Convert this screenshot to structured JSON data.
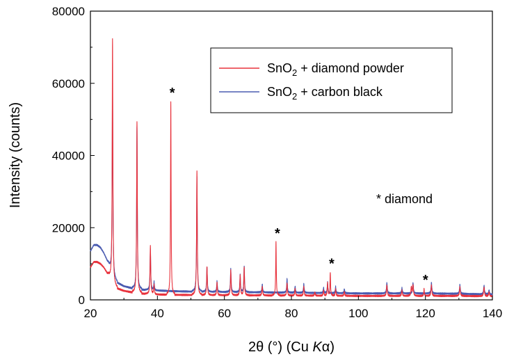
{
  "chart_data": {
    "type": "line",
    "xlabel_parts": [
      "2θ (°) (Cu ",
      "K",
      "α)"
    ],
    "ylabel": "Intensity (counts)",
    "xlim": [
      20,
      140
    ],
    "ylim": [
      0,
      80000
    ],
    "x_ticks": [
      "20",
      "40",
      "60",
      "80",
      "100",
      "120",
      "140"
    ],
    "y_ticks": [
      "0",
      "20000",
      "40000",
      "60000",
      "80000"
    ],
    "grid": false,
    "legend_placement": "top-right",
    "annotation": "* diamond",
    "star_peaks": [
      44.0,
      75.4,
      91.6,
      119.6
    ],
    "star_symbol": "*",
    "series": [
      {
        "name_parts": [
          "SnO",
          "2",
          " + diamond powder"
        ],
        "color": "#e8323c",
        "background": [
          [
            20,
            9000
          ],
          [
            21,
            10500
          ],
          [
            22,
            10500
          ],
          [
            23,
            10000
          ],
          [
            24,
            9000
          ],
          [
            25,
            7500
          ],
          [
            26,
            5800
          ],
          [
            27,
            4000
          ],
          [
            28,
            3200
          ],
          [
            30,
            2500
          ],
          [
            33,
            2000
          ],
          [
            36,
            1700
          ],
          [
            40,
            1500
          ],
          [
            45,
            1400
          ],
          [
            50,
            1350
          ],
          [
            60,
            1300
          ],
          [
            70,
            1250
          ],
          [
            80,
            1200
          ],
          [
            90,
            1150
          ],
          [
            100,
            1100
          ],
          [
            110,
            1100
          ],
          [
            120,
            1100
          ],
          [
            130,
            1100
          ],
          [
            140,
            1000
          ]
        ],
        "peaks": [
          [
            26.6,
            67500,
            0.12
          ],
          [
            33.9,
            47500,
            0.12
          ],
          [
            37.9,
            13500,
            0.12
          ],
          [
            39.0,
            2500,
            0.12
          ],
          [
            44.0,
            53500,
            0.1
          ],
          [
            51.8,
            34500,
            0.12
          ],
          [
            54.8,
            8000,
            0.12
          ],
          [
            57.8,
            3500,
            0.12
          ],
          [
            61.9,
            7000,
            0.12
          ],
          [
            64.7,
            5500,
            0.12
          ],
          [
            65.9,
            7800,
            0.12
          ],
          [
            71.3,
            2500,
            0.12
          ],
          [
            75.4,
            14800,
            0.1
          ],
          [
            78.7,
            3500,
            0.12
          ],
          [
            81.1,
            2000,
            0.12
          ],
          [
            83.7,
            2500,
            0.12
          ],
          [
            87.0,
            1000,
            0.12
          ],
          [
            89.6,
            1500,
            0.12
          ],
          [
            90.8,
            3500,
            0.12
          ],
          [
            91.6,
            6500,
            0.1
          ],
          [
            93.2,
            1800,
            0.12
          ],
          [
            95.8,
            1200,
            0.12
          ],
          [
            108.5,
            3000,
            0.14
          ],
          [
            113.0,
            1500,
            0.14
          ],
          [
            115.8,
            2500,
            0.14
          ],
          [
            116.3,
            3000,
            0.14
          ],
          [
            119.6,
            2000,
            0.1
          ],
          [
            121.8,
            3000,
            0.14
          ],
          [
            130.3,
            2500,
            0.14
          ],
          [
            137.5,
            2500,
            0.14
          ],
          [
            139.0,
            1200,
            0.14
          ]
        ]
      },
      {
        "name_parts": [
          "SnO",
          "2",
          " + carbon black"
        ],
        "color": "#4a5bb0",
        "background": [
          [
            20,
            13500
          ],
          [
            21,
            15200
          ],
          [
            22,
            15200
          ],
          [
            23,
            14500
          ],
          [
            24,
            13000
          ],
          [
            25,
            11000
          ],
          [
            26,
            8500
          ],
          [
            27,
            6000
          ],
          [
            28,
            4800
          ],
          [
            30,
            3800
          ],
          [
            33,
            3100
          ],
          [
            36,
            2800
          ],
          [
            40,
            2600
          ],
          [
            45,
            2400
          ],
          [
            50,
            2300
          ],
          [
            60,
            2200
          ],
          [
            70,
            2100
          ],
          [
            80,
            2000
          ],
          [
            90,
            1900
          ],
          [
            100,
            1800
          ],
          [
            110,
            1800
          ],
          [
            120,
            1800
          ],
          [
            130,
            1700
          ],
          [
            140,
            1500
          ]
        ],
        "peaks": [
          [
            26.6,
            54000,
            0.12
          ],
          [
            33.9,
            45000,
            0.12
          ],
          [
            37.9,
            11500,
            0.12
          ],
          [
            39.0,
            2300,
            0.12
          ],
          [
            51.8,
            32000,
            0.12
          ],
          [
            54.8,
            7000,
            0.12
          ],
          [
            57.8,
            3000,
            0.12
          ],
          [
            61.9,
            6500,
            0.12
          ],
          [
            64.7,
            4800,
            0.12
          ],
          [
            65.9,
            7200,
            0.12
          ],
          [
            71.3,
            2300,
            0.12
          ],
          [
            78.7,
            4000,
            0.12
          ],
          [
            81.1,
            1800,
            0.12
          ],
          [
            83.7,
            2500,
            0.12
          ],
          [
            89.6,
            1500,
            0.12
          ],
          [
            90.8,
            3000,
            0.12
          ],
          [
            93.2,
            1800,
            0.12
          ],
          [
            95.8,
            1200,
            0.12
          ],
          [
            108.5,
            3000,
            0.14
          ],
          [
            113.0,
            1500,
            0.14
          ],
          [
            116.3,
            3000,
            0.14
          ],
          [
            121.8,
            3000,
            0.14
          ],
          [
            130.3,
            2500,
            0.14
          ],
          [
            137.5,
            2500,
            0.14
          ],
          [
            139.0,
            1200,
            0.14
          ]
        ]
      }
    ]
  }
}
